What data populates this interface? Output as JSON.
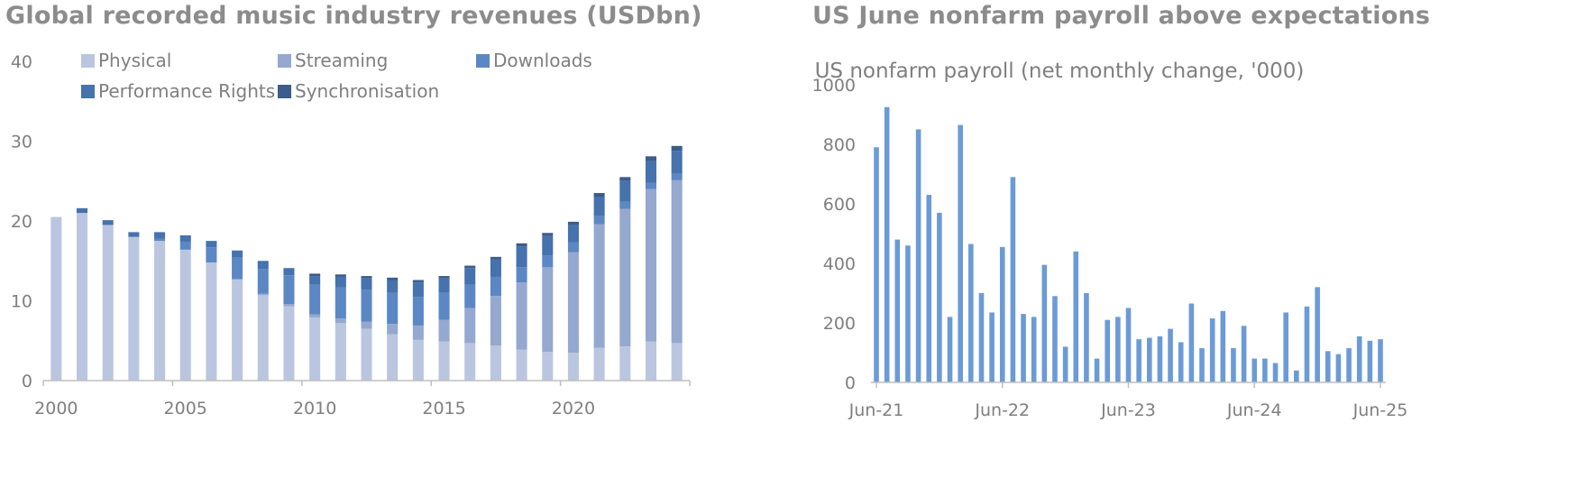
{
  "panels": {
    "left": {
      "title": "Global recorded music industry revenues (USDbn)"
    },
    "right": {
      "title": "US June nonfarm payroll above expectations"
    }
  },
  "colors": {
    "physical": "#bac6e0",
    "streaming": "#94a8d0",
    "downloads": "#5b87c5",
    "performance": "#4672ad",
    "synchronisation": "#3c5c8c",
    "payroll": "#6b9bd6",
    "axis": "#bfbfbf",
    "text": "#7f7f7f"
  },
  "chart_data": [
    {
      "type": "bar",
      "stacked": true,
      "title": "",
      "x": [
        2000,
        2001,
        2002,
        2003,
        2004,
        2005,
        2006,
        2007,
        2008,
        2009,
        2010,
        2011,
        2012,
        2013,
        2014,
        2015,
        2016,
        2017,
        2018,
        2019,
        2020,
        2021,
        2022,
        2023,
        2024
      ],
      "series": [
        {
          "name": "Physical",
          "color_key": "physical",
          "values": [
            20.5,
            21.0,
            19.5,
            18.0,
            17.5,
            16.4,
            14.8,
            12.7,
            10.7,
            9.3,
            7.9,
            7.2,
            6.5,
            5.8,
            5.1,
            4.9,
            4.7,
            4.4,
            3.9,
            3.6,
            3.5,
            4.1,
            4.3,
            4.9,
            4.7
          ]
        },
        {
          "name": "Streaming",
          "color_key": "streaming",
          "values": [
            0,
            0,
            0,
            0,
            0,
            0,
            0,
            0,
            0.2,
            0.3,
            0.4,
            0.6,
            0.9,
            1.3,
            1.8,
            2.7,
            4.4,
            6.2,
            8.4,
            10.6,
            12.6,
            15.5,
            17.2,
            19.1,
            20.4
          ]
        },
        {
          "name": "Downloads",
          "color_key": "downloads",
          "values": [
            0,
            0,
            0,
            0,
            0.3,
            1.0,
            1.9,
            2.7,
            3.1,
            3.6,
            3.7,
            3.9,
            4.0,
            3.9,
            3.6,
            3.4,
            2.9,
            2.4,
            1.9,
            1.5,
            1.2,
            1.0,
            0.9,
            0.8,
            0.8
          ]
        },
        {
          "name": "Performance Rights",
          "color_key": "performance",
          "values": [
            0,
            0.6,
            0.6,
            0.6,
            0.8,
            0.8,
            0.8,
            0.9,
            1.0,
            0.9,
            1.1,
            1.3,
            1.4,
            1.6,
            1.8,
            1.8,
            2.1,
            2.2,
            2.6,
            2.4,
            2.2,
            2.4,
            2.6,
            2.7,
            2.9
          ]
        },
        {
          "name": "Synchronisation",
          "color_key": "synchronisation",
          "values": [
            0,
            0,
            0,
            0,
            0,
            0,
            0,
            0,
            0,
            0,
            0.3,
            0.3,
            0.3,
            0.3,
            0.3,
            0.3,
            0.3,
            0.3,
            0.4,
            0.4,
            0.4,
            0.5,
            0.5,
            0.6,
            0.6
          ]
        }
      ],
      "xticks": [
        2000,
        2005,
        2010,
        2015,
        2020
      ],
      "ylim": [
        0,
        40
      ],
      "yticks": [
        0,
        10,
        20,
        30,
        40
      ],
      "legend": {
        "placement": "top-left",
        "columns": 3
      },
      "grid": false
    },
    {
      "type": "bar",
      "title": "US nonfarm payroll (net monthly change, '000)",
      "series": [
        {
          "name": "",
          "color_key": "payroll",
          "values": [
            790,
            925,
            480,
            460,
            850,
            630,
            570,
            220,
            865,
            465,
            300,
            235,
            455,
            690,
            230,
            220,
            395,
            290,
            120,
            440,
            300,
            80,
            210,
            220,
            250,
            145,
            150,
            155,
            180,
            135,
            265,
            115,
            215,
            240,
            115,
            190,
            80,
            80,
            65,
            235,
            40,
            255,
            320,
            105,
            95,
            115,
            155,
            140,
            145
          ]
        }
      ],
      "x_start": "Jun-21",
      "x_end": "Jun-25",
      "xticks": [
        "Jun-21",
        "Jun-22",
        "Jun-23",
        "Jun-24",
        "Jun-25"
      ],
      "ylim": [
        0,
        1000
      ],
      "yticks": [
        0,
        200,
        400,
        600,
        800,
        1000
      ],
      "grid": false
    }
  ]
}
